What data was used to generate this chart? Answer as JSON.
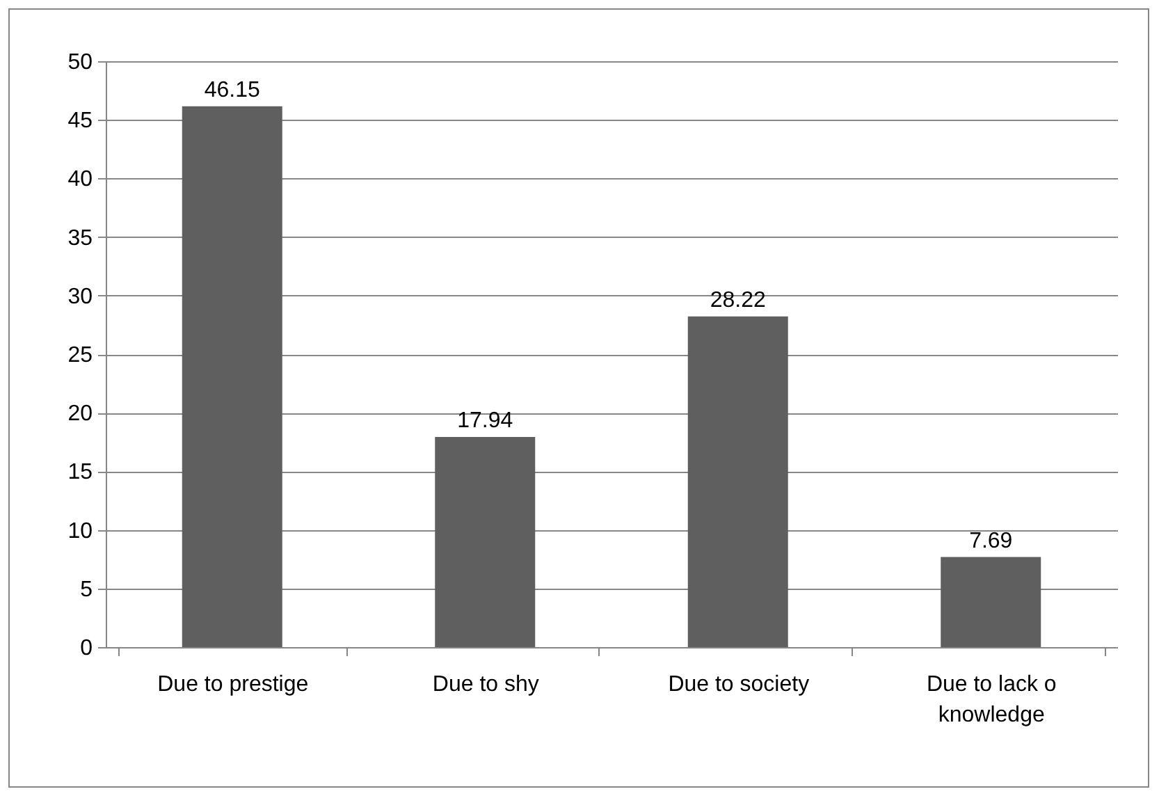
{
  "chart_data": {
    "type": "bar",
    "categories": [
      "Due to prestige",
      "Due to shy",
      "Due to society",
      "Due to lack o knowledge"
    ],
    "values": [
      46.15,
      17.94,
      28.22,
      7.69
    ],
    "color": "#5f5f5f",
    "ylim": [
      0,
      50
    ],
    "yticks": [
      0,
      5,
      10,
      15,
      20,
      25,
      30,
      35,
      40,
      45,
      50
    ],
    "grid": "y",
    "data_labels": true
  }
}
